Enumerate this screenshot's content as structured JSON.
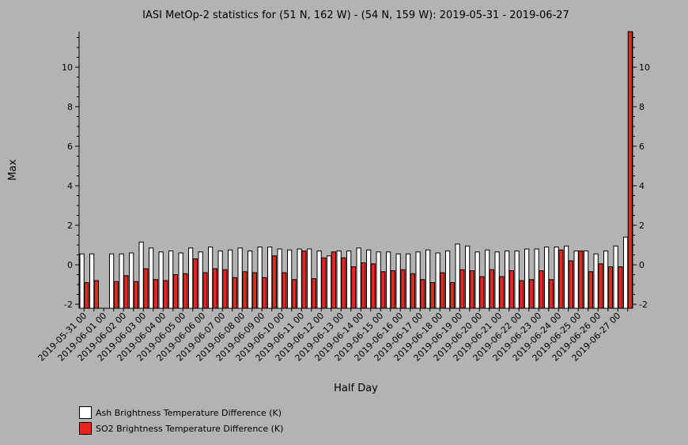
{
  "chart_data": {
    "type": "bar",
    "title": "IASI MetOp-2 statistics for (51 N, 162 W) - (54 N, 159 W): 2019-05-31 - 2019-06-27",
    "xlabel": "Half Day",
    "ylabel": "Max",
    "ylim": [
      -2.2,
      11.8
    ],
    "yticks": [
      -2,
      0,
      2,
      4,
      6,
      8,
      10
    ],
    "categories": [
      "2019-05-31 00",
      "2019-05-31 12",
      "2019-06-01 00",
      "2019-06-01 12",
      "2019-06-02 00",
      "2019-06-02 12",
      "2019-06-03 00",
      "2019-06-03 12",
      "2019-06-04 00",
      "2019-06-04 12",
      "2019-06-05 00",
      "2019-06-05 12",
      "2019-06-06 00",
      "2019-06-06 12",
      "2019-06-07 00",
      "2019-06-07 12",
      "2019-06-08 00",
      "2019-06-08 12",
      "2019-06-09 00",
      "2019-06-09 12",
      "2019-06-10 00",
      "2019-06-10 12",
      "2019-06-11 00",
      "2019-06-11 12",
      "2019-06-12 00",
      "2019-06-12 12",
      "2019-06-13 00",
      "2019-06-13 12",
      "2019-06-14 00",
      "2019-06-14 12",
      "2019-06-15 00",
      "2019-06-15 12",
      "2019-06-16 00",
      "2019-06-16 12",
      "2019-06-17 00",
      "2019-06-17 12",
      "2019-06-18 00",
      "2019-06-18 12",
      "2019-06-19 00",
      "2019-06-19 12",
      "2019-06-20 00",
      "2019-06-20 12",
      "2019-06-21 00",
      "2019-06-21 12",
      "2019-06-22 00",
      "2019-06-22 12",
      "2019-06-23 00",
      "2019-06-23 12",
      "2019-06-24 00",
      "2019-06-24 12",
      "2019-06-25 00",
      "2019-06-25 12",
      "2019-06-26 00",
      "2019-06-26 12",
      "2019-06-27 00",
      "2019-06-27 12"
    ],
    "tick_labels": [
      "2019-05-31 00",
      "2019-06-01 00",
      "2019-06-02 00",
      "2019-06-03 00",
      "2019-06-04 00",
      "2019-06-05 00",
      "2019-06-06 00",
      "2019-06-07 00",
      "2019-06-08 00",
      "2019-06-09 00",
      "2019-06-10 00",
      "2019-06-11 00",
      "2019-06-12 00",
      "2019-06-13 00",
      "2019-06-14 00",
      "2019-06-15 00",
      "2019-06-16 00",
      "2019-06-17 00",
      "2019-06-18 00",
      "2019-06-19 00",
      "2019-06-20 00",
      "2019-06-21 00",
      "2019-06-22 00",
      "2019-06-23 00",
      "2019-06-24 00",
      "2019-06-25 00",
      "2019-06-26 00",
      "2019-06-27 00"
    ],
    "series": [
      {
        "name": "Ash Brightness Temperature Difference (K)",
        "color": "#ffffff",
        "values": [
          0.55,
          0.55,
          null,
          0.55,
          0.55,
          0.6,
          1.15,
          0.85,
          0.65,
          0.7,
          0.6,
          0.85,
          0.65,
          0.9,
          0.7,
          0.75,
          0.85,
          0.7,
          0.9,
          0.9,
          0.8,
          0.75,
          0.8,
          0.8,
          0.7,
          0.45,
          0.7,
          0.7,
          0.85,
          0.75,
          0.65,
          0.65,
          0.55,
          0.55,
          0.65,
          0.75,
          0.6,
          0.7,
          1.05,
          0.95,
          0.65,
          0.75,
          0.65,
          0.7,
          0.7,
          0.8,
          0.8,
          0.9,
          0.9,
          0.95,
          0.7,
          0.7,
          0.55,
          0.7,
          0.95,
          1.4
        ]
      },
      {
        "name": "SO2 Brightness Temperature Difference (K)",
        "color": "#e8251f",
        "values": [
          -0.9,
          -0.8,
          null,
          -0.85,
          -0.55,
          -0.85,
          -0.2,
          -0.75,
          -0.8,
          -0.5,
          -0.45,
          0.3,
          -0.4,
          -0.2,
          -0.25,
          -0.65,
          -0.35,
          -0.4,
          -0.65,
          0.45,
          -0.4,
          -0.75,
          0.7,
          -0.7,
          0.35,
          0.65,
          0.35,
          -0.1,
          0.1,
          0.05,
          -0.35,
          -0.3,
          -0.25,
          -0.45,
          -0.75,
          -0.9,
          -0.4,
          -0.9,
          -0.25,
          -0.3,
          -0.6,
          -0.25,
          -0.6,
          -0.3,
          -0.8,
          -0.75,
          -0.3,
          -0.75,
          0.75,
          0.2,
          0.7,
          -0.35,
          0.05,
          -0.1,
          -0.1,
          11.8
        ]
      }
    ],
    "legend_position": "bottom-left"
  }
}
